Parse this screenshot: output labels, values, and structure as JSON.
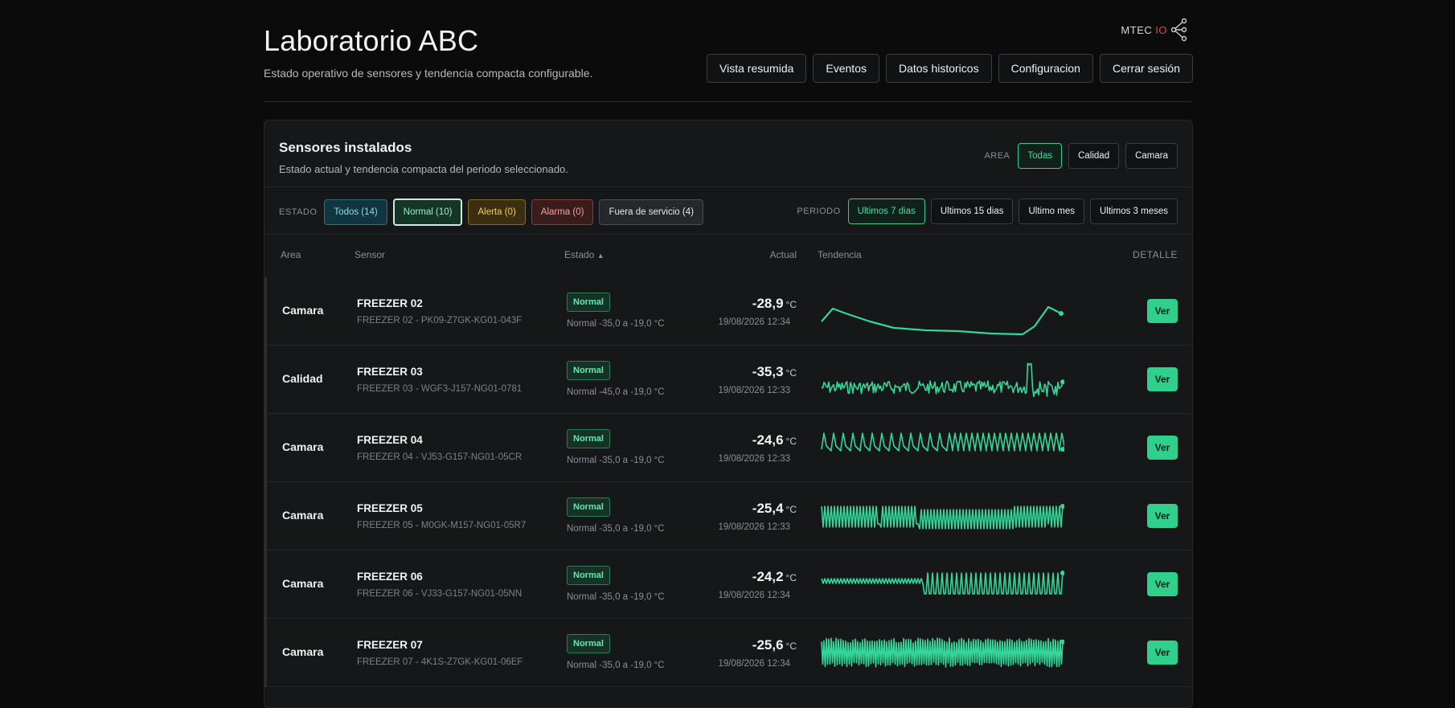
{
  "header": {
    "title": "Laboratorio ABC",
    "subtitle": "Estado operativo de sensores y tendencia compacta configurable.",
    "logo": {
      "text": "MTEC",
      "io": "IO"
    },
    "nav": [
      "Vista resumida",
      "Eventos",
      "Datos historicos",
      "Configuracion",
      "Cerrar sesión"
    ]
  },
  "panel": {
    "title": "Sensores instalados",
    "subtitle": "Estado actual y tendencia compacta del periodo seleccionado.",
    "area_label": "AREA",
    "area_options": [
      "Todas",
      "Calidad",
      "Camara"
    ],
    "area_selected": "Todas",
    "estado_label": "ESTADO",
    "estado_options": [
      "Todos (14)",
      "Normal (10)",
      "Alerta (0)",
      "Alarma (0)",
      "Fuera de servicio (4)"
    ],
    "periodo_label": "PERIODO",
    "periodo_options": [
      "Ultimos 7 dias",
      "Ultimos 15 dias",
      "Ultimo mes",
      "Ultimos 3 meses"
    ],
    "periodo_selected": "Ultimos 7 dias"
  },
  "table": {
    "headers": {
      "area": "Area",
      "sensor": "Sensor",
      "estado": "Estado",
      "sort": "▲",
      "actual": "Actual",
      "tendencia": "Tendencia",
      "detalle": "DETALLE"
    },
    "rows": [
      {
        "area": "Camara",
        "name": "FREEZER 02",
        "id": "FREEZER 02 - PK09-Z7GK-KG01-043F",
        "status": "Normal",
        "range": "Normal -35,0 a -19,0 °C",
        "value": "-28,9",
        "unit": "°C",
        "time": "19/08/2026 12:34",
        "action": "Ver",
        "trend": "smooth"
      },
      {
        "area": "Calidad",
        "name": "FREEZER 03",
        "id": "FREEZER 03 - WGF3-J157-NG01-0781",
        "status": "Normal",
        "range": "Normal -45,0 a -19,0 °C",
        "value": "-35,3",
        "unit": "°C",
        "time": "19/08/2026 12:33",
        "action": "Ver",
        "trend": "noise"
      },
      {
        "area": "Camara",
        "name": "FREEZER 04",
        "id": "FREEZER 04 - VJ53-G157-NG01-05CR",
        "status": "Normal",
        "range": "Normal -35,0 a -19,0 °C",
        "value": "-24,6",
        "unit": "°C",
        "time": "19/08/2026 12:33",
        "action": "Ver",
        "trend": "spikes"
      },
      {
        "area": "Camara",
        "name": "FREEZER 05",
        "id": "FREEZER 05 - M0GK-M157-NG01-05R7",
        "status": "Normal",
        "range": "Normal -35,0 a -19,0 °C",
        "value": "-25,4",
        "unit": "°C",
        "time": "19/08/2026 12:33",
        "action": "Ver",
        "trend": "blocks"
      },
      {
        "area": "Camara",
        "name": "FREEZER 06",
        "id": "FREEZER 06 - VJ33-G157-NG01-05NN",
        "status": "Normal",
        "range": "Normal -35,0 a -19,0 °C",
        "value": "-24,2",
        "unit": "°C",
        "time": "19/08/2026 12:34",
        "action": "Ver",
        "trend": "step"
      },
      {
        "area": "Camara",
        "name": "FREEZER 07",
        "id": "FREEZER 07 - 4K1S-Z7GK-KG01-06EF",
        "status": "Normal",
        "range": "Normal -35,0 a -19,0 °C",
        "value": "-25,6",
        "unit": "°C",
        "time": "19/08/2026 12:34",
        "action": "Ver",
        "trend": "dense"
      }
    ]
  },
  "colors": {
    "accent": "#2fcf8c",
    "trend": "#35d69a",
    "background": "#0b0b0c",
    "panel": "#161718"
  }
}
